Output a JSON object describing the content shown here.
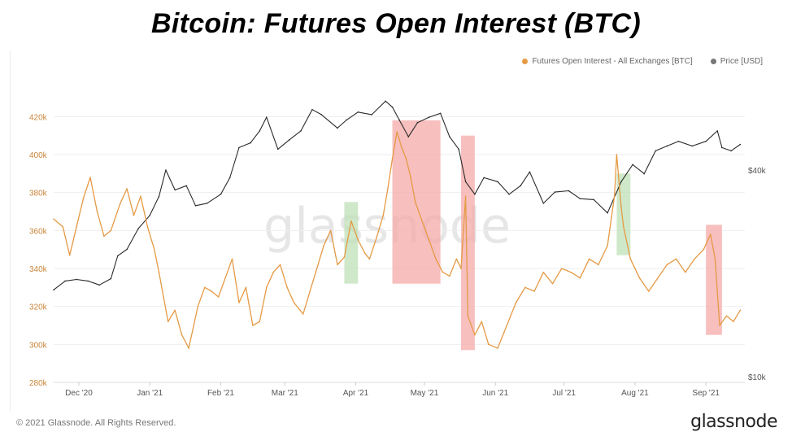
{
  "page_title": "Bitcoin: Futures Open Interest (BTC)",
  "watermark": "glassnode",
  "footer": {
    "copyright": "© 2021 Glassnode. All Rights Reserved.",
    "logo": "glassnode"
  },
  "colors": {
    "oi": "#e59a45",
    "price": "#2a2a2a",
    "green_box": "#bfe0b8",
    "red_box": "#f4aaa8",
    "axis_text_left": "#c8853a",
    "axis_text_right": "#555555"
  },
  "chart_data": {
    "type": "line",
    "legend": [
      {
        "name": "Futures Open Interest - All Exchanges [BTC]",
        "color": "#e59a45"
      },
      {
        "name": "Price [USD]",
        "color": "#777777"
      }
    ],
    "x_labels": [
      "Dec '20",
      "Jan '21",
      "Feb '21",
      "Mar '21",
      "Apr '21",
      "May '21",
      "Jun '21",
      "Jul '21",
      "Aug '21",
      "Sep '21"
    ],
    "x_range": [
      "2020-11-20",
      "2021-09-18"
    ],
    "y_left": {
      "ticks": [
        "280k",
        "300k",
        "320k",
        "340k",
        "360k",
        "380k",
        "400k",
        "420k"
      ],
      "ylim": [
        280000,
        430000
      ]
    },
    "y_right": {
      "ticks": [
        "$10k",
        "$40k"
      ],
      "scale": "log"
    },
    "series": [
      {
        "name": "Futures Open Interest - All Exchanges [BTC]",
        "axis": "left",
        "points": [
          [
            "2020-11-20",
            366000
          ],
          [
            "2020-11-24",
            362000
          ],
          [
            "2020-11-27",
            347000
          ],
          [
            "2020-11-30",
            362000
          ],
          [
            "2020-12-03",
            377000
          ],
          [
            "2020-12-06",
            388000
          ],
          [
            "2020-12-09",
            370000
          ],
          [
            "2020-12-12",
            357000
          ],
          [
            "2020-12-15",
            360000
          ],
          [
            "2020-12-19",
            374000
          ],
          [
            "2020-12-22",
            382000
          ],
          [
            "2020-12-25",
            368000
          ],
          [
            "2020-12-28",
            378000
          ],
          [
            "2020-12-31",
            362000
          ],
          [
            "2021-01-03",
            350000
          ],
          [
            "2021-01-05",
            338000
          ],
          [
            "2021-01-07",
            325000
          ],
          [
            "2021-01-09",
            312000
          ],
          [
            "2021-01-12",
            318000
          ],
          [
            "2021-01-15",
            305000
          ],
          [
            "2021-01-18",
            298000
          ],
          [
            "2021-01-22",
            320000
          ],
          [
            "2021-01-25",
            330000
          ],
          [
            "2021-01-28",
            328000
          ],
          [
            "2021-01-31",
            325000
          ],
          [
            "2021-02-03",
            335000
          ],
          [
            "2021-02-06",
            345000
          ],
          [
            "2021-02-09",
            322000
          ],
          [
            "2021-02-12",
            330000
          ],
          [
            "2021-02-15",
            310000
          ],
          [
            "2021-02-18",
            312000
          ],
          [
            "2021-02-21",
            330000
          ],
          [
            "2021-02-24",
            338000
          ],
          [
            "2021-02-27",
            342000
          ],
          [
            "2021-03-02",
            330000
          ],
          [
            "2021-03-05",
            322000
          ],
          [
            "2021-03-09",
            316000
          ],
          [
            "2021-03-12",
            328000
          ],
          [
            "2021-03-15",
            340000
          ],
          [
            "2021-03-18",
            352000
          ],
          [
            "2021-03-21",
            360000
          ],
          [
            "2021-03-24",
            342000
          ],
          [
            "2021-03-27",
            346000
          ],
          [
            "2021-03-30",
            365000
          ],
          [
            "2021-04-02",
            355000
          ],
          [
            "2021-04-05",
            348000
          ],
          [
            "2021-04-07",
            345000
          ],
          [
            "2021-04-10",
            356000
          ],
          [
            "2021-04-13",
            368000
          ],
          [
            "2021-04-15",
            382000
          ],
          [
            "2021-04-17",
            398000
          ],
          [
            "2021-04-19",
            412000
          ],
          [
            "2021-04-21",
            404000
          ],
          [
            "2021-04-23",
            398000
          ],
          [
            "2021-04-25",
            388000
          ],
          [
            "2021-04-27",
            375000
          ],
          [
            "2021-04-30",
            365000
          ],
          [
            "2021-05-03",
            355000
          ],
          [
            "2021-05-06",
            345000
          ],
          [
            "2021-05-09",
            338000
          ],
          [
            "2021-05-12",
            336000
          ],
          [
            "2021-05-15",
            345000
          ],
          [
            "2021-05-17",
            340000
          ],
          [
            "2021-05-19",
            378000
          ],
          [
            "2021-05-20",
            315000
          ],
          [
            "2021-05-23",
            305000
          ],
          [
            "2021-05-26",
            312000
          ],
          [
            "2021-05-29",
            300000
          ],
          [
            "2021-06-02",
            298000
          ],
          [
            "2021-06-06",
            310000
          ],
          [
            "2021-06-10",
            322000
          ],
          [
            "2021-06-14",
            330000
          ],
          [
            "2021-06-18",
            328000
          ],
          [
            "2021-06-22",
            338000
          ],
          [
            "2021-06-26",
            332000
          ],
          [
            "2021-06-30",
            340000
          ],
          [
            "2021-07-04",
            338000
          ],
          [
            "2021-07-08",
            335000
          ],
          [
            "2021-07-12",
            345000
          ],
          [
            "2021-07-16",
            342000
          ],
          [
            "2021-07-20",
            352000
          ],
          [
            "2021-07-23",
            378000
          ],
          [
            "2021-07-24",
            400000
          ],
          [
            "2021-07-26",
            372000
          ],
          [
            "2021-07-27",
            362000
          ],
          [
            "2021-07-30",
            345000
          ],
          [
            "2021-08-03",
            335000
          ],
          [
            "2021-08-07",
            328000
          ],
          [
            "2021-08-11",
            335000
          ],
          [
            "2021-08-15",
            342000
          ],
          [
            "2021-08-19",
            345000
          ],
          [
            "2021-08-23",
            338000
          ],
          [
            "2021-08-27",
            345000
          ],
          [
            "2021-08-31",
            350000
          ],
          [
            "2021-09-03",
            358000
          ],
          [
            "2021-09-05",
            345000
          ],
          [
            "2021-09-07",
            310000
          ],
          [
            "2021-09-10",
            315000
          ],
          [
            "2021-09-13",
            312000
          ],
          [
            "2021-09-16",
            318000
          ]
        ]
      },
      {
        "name": "Price [USD]",
        "axis": "right",
        "points": [
          [
            "2020-11-20",
            17900
          ],
          [
            "2020-11-25",
            19000
          ],
          [
            "2020-11-30",
            19200
          ],
          [
            "2020-12-05",
            19000
          ],
          [
            "2020-12-10",
            18500
          ],
          [
            "2020-12-15",
            19300
          ],
          [
            "2020-12-18",
            22500
          ],
          [
            "2020-12-22",
            23500
          ],
          [
            "2020-12-27",
            27000
          ],
          [
            "2021-01-01",
            29500
          ],
          [
            "2021-01-05",
            33500
          ],
          [
            "2021-01-08",
            40000
          ],
          [
            "2021-01-12",
            35000
          ],
          [
            "2021-01-17",
            36000
          ],
          [
            "2021-01-21",
            31500
          ],
          [
            "2021-01-26",
            32000
          ],
          [
            "2021-02-01",
            34000
          ],
          [
            "2021-02-05",
            38000
          ],
          [
            "2021-02-09",
            46500
          ],
          [
            "2021-02-14",
            48000
          ],
          [
            "2021-02-18",
            52000
          ],
          [
            "2021-02-21",
            57000
          ],
          [
            "2021-02-26",
            46000
          ],
          [
            "2021-03-03",
            49000
          ],
          [
            "2021-03-08",
            52000
          ],
          [
            "2021-03-13",
            60000
          ],
          [
            "2021-03-17",
            58000
          ],
          [
            "2021-03-24",
            53000
          ],
          [
            "2021-03-28",
            56000
          ],
          [
            "2021-04-02",
            59000
          ],
          [
            "2021-04-08",
            58000
          ],
          [
            "2021-04-14",
            63500
          ],
          [
            "2021-04-17",
            61000
          ],
          [
            "2021-04-20",
            56000
          ],
          [
            "2021-04-24",
            50000
          ],
          [
            "2021-04-28",
            55000
          ],
          [
            "2021-05-03",
            57000
          ],
          [
            "2021-05-08",
            58500
          ],
          [
            "2021-05-12",
            50000
          ],
          [
            "2021-05-16",
            46000
          ],
          [
            "2021-05-19",
            37000
          ],
          [
            "2021-05-23",
            34000
          ],
          [
            "2021-05-27",
            38000
          ],
          [
            "2021-06-02",
            37000
          ],
          [
            "2021-06-07",
            34000
          ],
          [
            "2021-06-12",
            36000
          ],
          [
            "2021-06-16",
            39500
          ],
          [
            "2021-06-22",
            32000
          ],
          [
            "2021-06-27",
            34500
          ],
          [
            "2021-07-03",
            34800
          ],
          [
            "2021-07-08",
            33000
          ],
          [
            "2021-07-14",
            32800
          ],
          [
            "2021-07-20",
            30000
          ],
          [
            "2021-07-26",
            37000
          ],
          [
            "2021-07-31",
            41500
          ],
          [
            "2021-08-05",
            39000
          ],
          [
            "2021-08-10",
            45500
          ],
          [
            "2021-08-15",
            47000
          ],
          [
            "2021-08-20",
            48500
          ],
          [
            "2021-08-26",
            47000
          ],
          [
            "2021-09-01",
            48500
          ],
          [
            "2021-09-06",
            52000
          ],
          [
            "2021-09-08",
            46500
          ],
          [
            "2021-09-12",
            45500
          ],
          [
            "2021-09-16",
            47500
          ]
        ]
      }
    ],
    "highlight_boxes": [
      {
        "color": "green",
        "x": [
          "2021-03-27",
          "2021-04-02"
        ],
        "y": [
          332000,
          375000
        ]
      },
      {
        "color": "red",
        "x": [
          "2021-04-17",
          "2021-05-08"
        ],
        "y": [
          332000,
          418000
        ]
      },
      {
        "color": "red",
        "x": [
          "2021-05-17",
          "2021-05-23"
        ],
        "y": [
          297000,
          410000
        ]
      },
      {
        "color": "green",
        "x": [
          "2021-07-24",
          "2021-07-30"
        ],
        "y": [
          347000,
          390000
        ]
      },
      {
        "color": "red",
        "x": [
          "2021-09-01",
          "2021-09-08"
        ],
        "y": [
          305000,
          363000
        ]
      }
    ]
  }
}
